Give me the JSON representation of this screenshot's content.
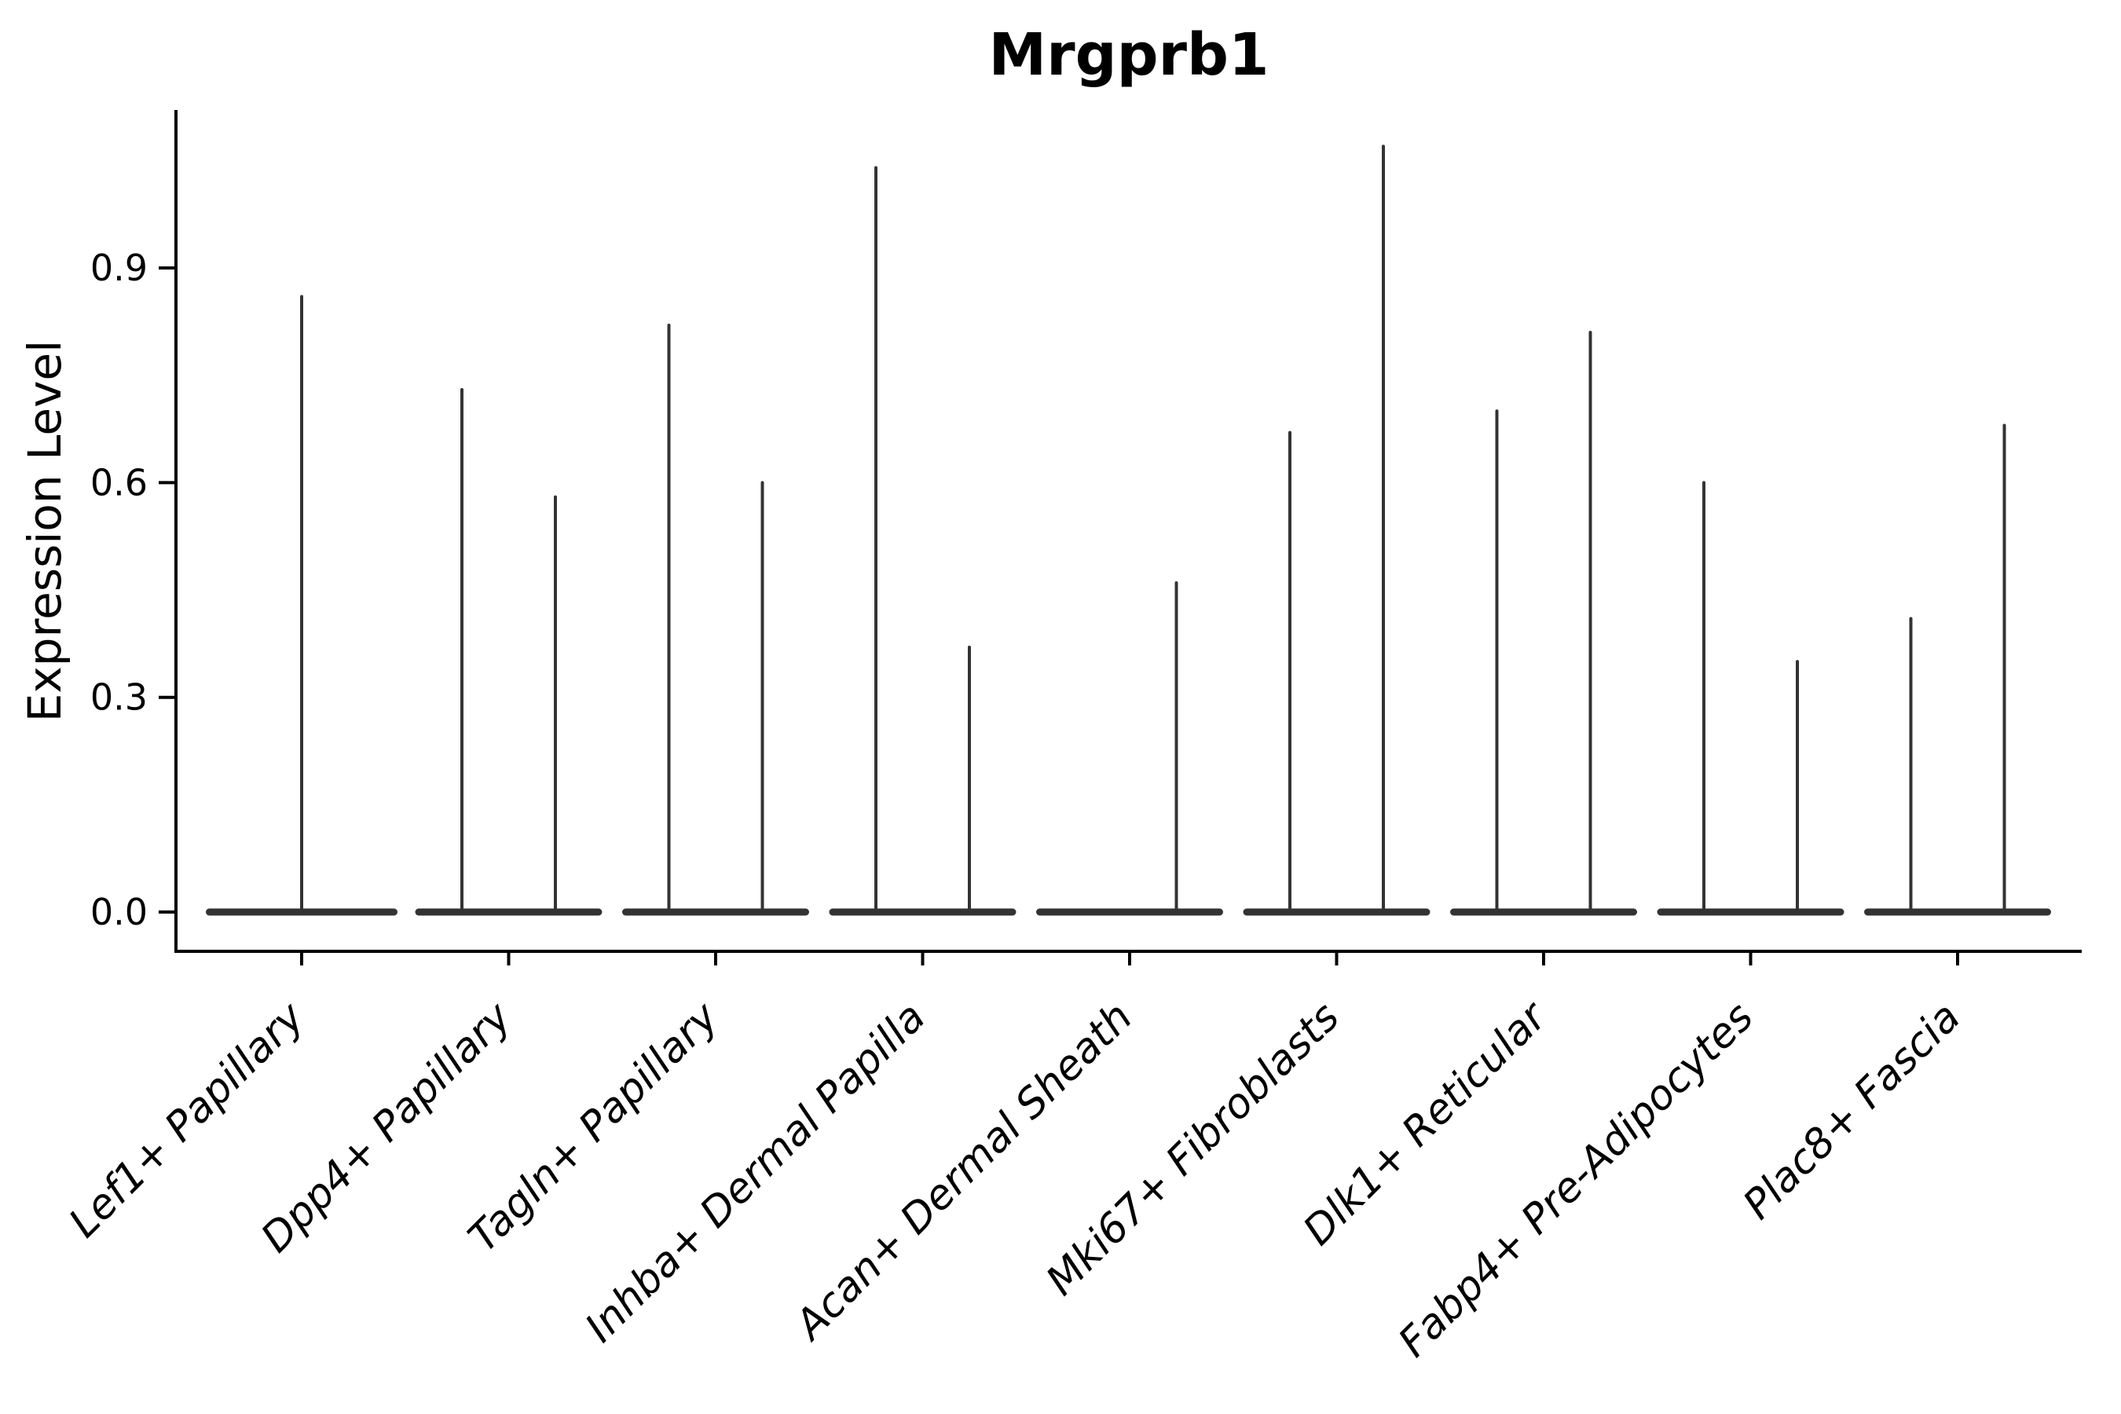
{
  "title": "Mrgprb1",
  "ylabel": "Expression Level",
  "chart_data": {
    "type": "violin",
    "title": "Mrgprb1",
    "xlabel": "",
    "ylabel": "Expression Level",
    "ylim": [
      -0.055,
      1.12
    ],
    "yticks": [
      0.0,
      0.3,
      0.6,
      0.9
    ],
    "ytick_labels": [
      "0.0",
      "0.3",
      "0.6",
      "0.9"
    ],
    "grid": false,
    "legend": "none",
    "line_color": "#333333",
    "axis_color": "#000000",
    "description": "Single-cell expression violin plot; nearly all cells at 0 so each violin renders as a flat base bar at 0 with a thin spike to its maximum expression value. Categories with two spikes contain two side-by-side violins (split groups).",
    "categories": [
      {
        "label": "Lef1+ Papillary",
        "violins": [
          {
            "offset": 0,
            "max": 0.86
          }
        ]
      },
      {
        "label": "Dpp4+ Papillary",
        "violins": [
          {
            "offset": -1,
            "max": 0.73
          },
          {
            "offset": 1,
            "max": 0.58
          }
        ]
      },
      {
        "label": "Tagln+ Papillary",
        "violins": [
          {
            "offset": -1,
            "max": 0.82
          },
          {
            "offset": 1,
            "max": 0.6
          }
        ]
      },
      {
        "label": "Inhba+ Dermal Papilla",
        "violins": [
          {
            "offset": -1,
            "max": 1.04
          },
          {
            "offset": 1,
            "max": 0.37
          }
        ]
      },
      {
        "label": "Acan+ Dermal Sheath",
        "violins": [
          {
            "offset": -1,
            "max": 0.0
          },
          {
            "offset": 1,
            "max": 0.46
          }
        ]
      },
      {
        "label": "Mki67+ Fibroblasts",
        "violins": [
          {
            "offset": -1,
            "max": 0.67
          },
          {
            "offset": 1,
            "max": 1.07
          }
        ]
      },
      {
        "label": "Dlk1+ Reticular",
        "violins": [
          {
            "offset": -1,
            "max": 0.7
          },
          {
            "offset": 1,
            "max": 0.81
          }
        ]
      },
      {
        "label": "Fabp4+ Pre-Adipocytes",
        "violins": [
          {
            "offset": -1,
            "max": 0.6
          },
          {
            "offset": 1,
            "max": 0.35
          }
        ]
      },
      {
        "label": "Plac8+ Fascia",
        "violins": [
          {
            "offset": -1,
            "max": 0.41
          },
          {
            "offset": 1,
            "max": 0.68
          }
        ]
      }
    ]
  }
}
